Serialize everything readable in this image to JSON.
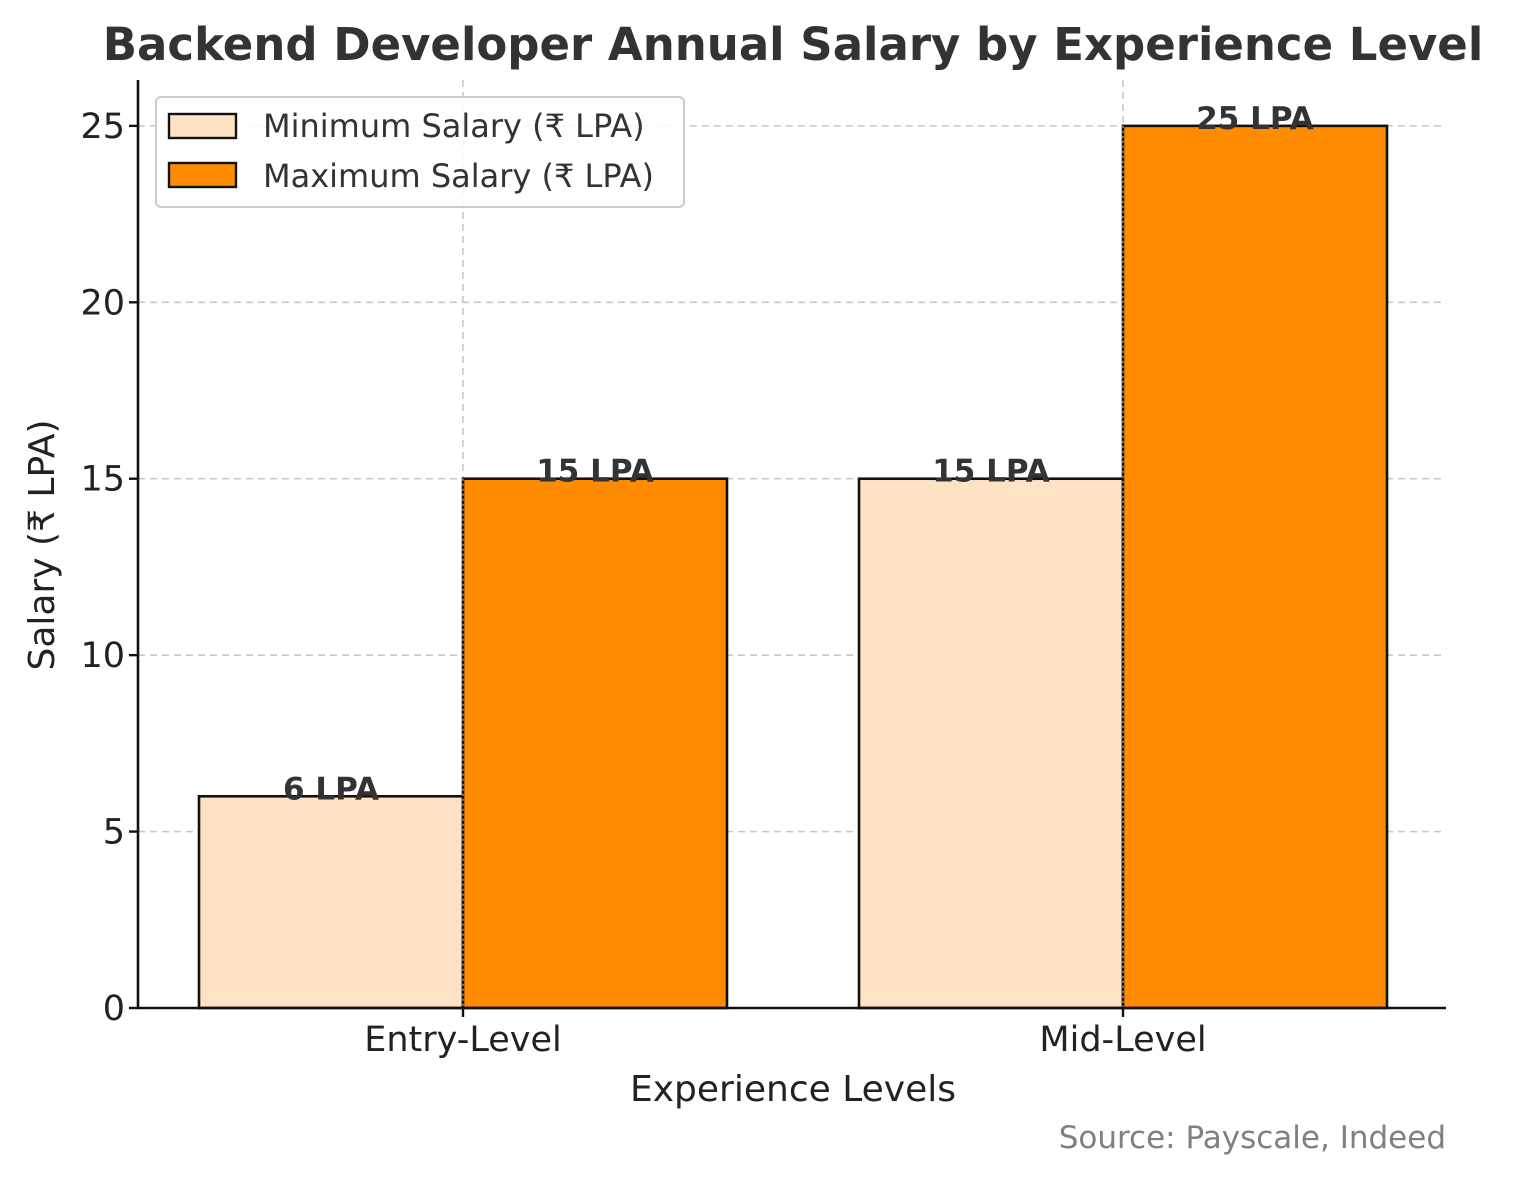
{
  "chart_data": {
    "type": "bar",
    "title": "Backend Developer Annual Salary by Experience Level",
    "xlabel": "Experience Levels",
    "ylabel": "Salary (₹ LPA)",
    "categories": [
      "Entry-Level",
      "Mid-Level"
    ],
    "series": [
      {
        "name": "Minimum Salary (₹ LPA)",
        "values": [
          6,
          15
        ],
        "color": "#FDE2C4",
        "labels": [
          "6 LPA",
          "15 LPA"
        ]
      },
      {
        "name": "Maximum Salary (₹ LPA)",
        "values": [
          15,
          25
        ],
        "color": "#FF8C00",
        "labels": [
          "15 LPA",
          "25 LPA"
        ]
      }
    ],
    "ylim": [
      0,
      26.3
    ],
    "yticks": [
      0,
      5,
      10,
      15,
      20,
      25
    ],
    "grid": true,
    "legend_position": "top-left",
    "source": "Source: Payscale, Indeed"
  }
}
